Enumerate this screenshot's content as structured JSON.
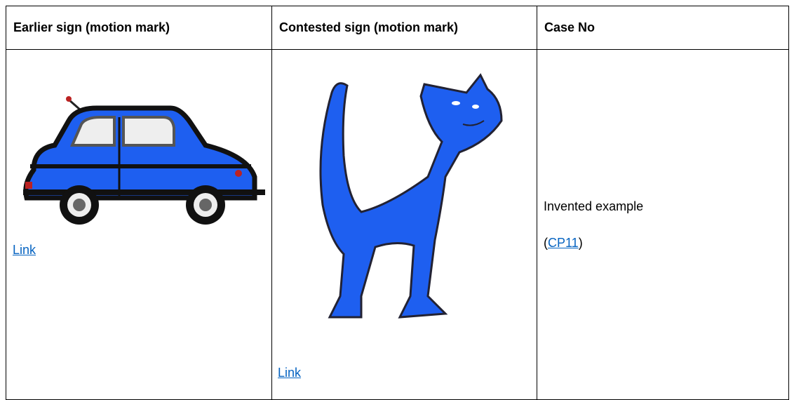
{
  "table": {
    "headers": [
      "Earlier sign (motion mark)",
      "Contested sign (motion mark)",
      "Case No"
    ],
    "rows": [
      [
        {
          "link": "Link"
        },
        {
          "link": "Link"
        },
        {
          "text": "Invented example",
          "case_ref": {
            "before": "(",
            "link": "CP11",
            "after": ")"
          }
        }
      ]
    ]
  }
}
